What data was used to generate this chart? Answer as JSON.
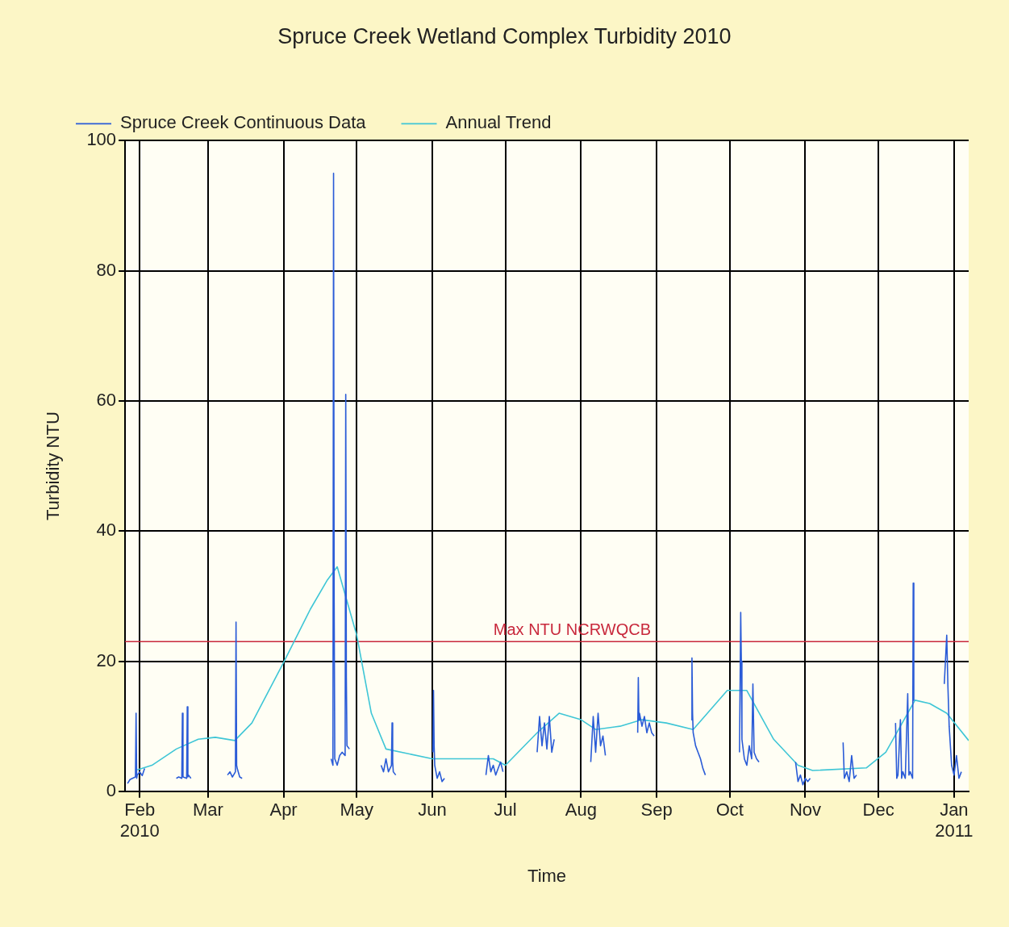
{
  "chart_data": {
    "type": "line",
    "title": "Spruce Creek Wetland Complex Turbidity 2010",
    "xlabel": "Time",
    "ylabel": "Turbidity NTU",
    "xlim": [
      "2010-01-26",
      "2011-01-07"
    ],
    "xticks": [
      {
        "value": "2010-02-01",
        "label": "Feb 2010"
      },
      {
        "value": "2010-03-01",
        "label": "Mar"
      },
      {
        "value": "2010-04-01",
        "label": "Apr"
      },
      {
        "value": "2010-05-01",
        "label": "May"
      },
      {
        "value": "2010-06-01",
        "label": "Jun"
      },
      {
        "value": "2010-07-01",
        "label": "Jul"
      },
      {
        "value": "2010-08-01",
        "label": "Aug"
      },
      {
        "value": "2010-09-01",
        "label": "Sep"
      },
      {
        "value": "2010-10-01",
        "label": "Oct"
      },
      {
        "value": "2010-11-01",
        "label": "Nov"
      },
      {
        "value": "2010-12-01",
        "label": "Dec"
      },
      {
        "value": "2011-01-01",
        "label": "Jan 2011"
      }
    ],
    "ylim": [
      0,
      100
    ],
    "yticks": [
      0,
      20,
      40,
      60,
      80,
      100
    ],
    "grid": true,
    "legend": "top left",
    "marker": "none",
    "line_style": "solid",
    "ref_lines": [
      {
        "axis": "y",
        "value": 23,
        "label": "Max NTU NCRWQCB",
        "color": "#c8283c"
      }
    ],
    "series": [
      {
        "name": "Spruce Creek Continuous Data",
        "color": "#2a5bd7",
        "x": [
          "2010-01-27",
          "2010-01-28",
          "2010-01-29",
          "2010-01-30T06:00",
          "2010-01-30T12:00",
          "2010-01-30T18:00",
          "2010-01-31",
          "2010-02-01",
          "2010-02-02",
          "2010-02-03",
          "2010-02-10",
          "2010-02-16",
          "2010-02-17",
          "2010-02-18T06:00",
          "2010-02-18T12:00",
          "2010-02-18T18:00",
          "2010-02-20T06:00",
          "2010-02-20T12:00",
          "2010-02-20T18:00",
          "2010-02-21",
          "2010-02-22",
          "2010-03-01",
          "2010-03-09",
          "2010-03-10",
          "2010-03-11",
          "2010-03-12T06:00",
          "2010-03-12T12:00",
          "2010-03-12T18:00",
          "2010-03-13",
          "2010-03-14",
          "2010-03-15",
          "2010-04-01",
          "2010-04-20T12:00",
          "2010-04-21T06:00",
          "2010-04-21T12:00",
          "2010-04-21T18:00",
          "2010-04-22",
          "2010-04-23",
          "2010-04-24",
          "2010-04-25",
          "2010-04-26T06:00",
          "2010-04-26T12:00",
          "2010-04-26T18:00",
          "2010-04-27",
          "2010-04-28",
          "2010-05-05",
          "2010-05-11",
          "2010-05-12",
          "2010-05-13",
          "2010-05-14",
          "2010-05-15T06:00",
          "2010-05-15T12:00",
          "2010-05-15T18:00",
          "2010-05-16",
          "2010-05-17",
          "2010-05-25",
          "2010-06-01T06:00",
          "2010-06-01T12:00",
          "2010-06-01T18:00",
          "2010-06-02",
          "2010-06-03",
          "2010-06-04",
          "2010-06-05",
          "2010-06-06",
          "2010-06-15",
          "2010-06-23",
          "2010-06-24",
          "2010-06-25",
          "2010-06-26",
          "2010-06-27",
          "2010-06-28",
          "2010-06-29",
          "2010-06-30",
          "2010-07-08",
          "2010-07-14",
          "2010-07-15",
          "2010-07-16",
          "2010-07-17",
          "2010-07-18",
          "2010-07-19",
          "2010-07-20",
          "2010-07-21",
          "2010-07-28",
          "2010-08-05",
          "2010-08-06",
          "2010-08-07",
          "2010-08-08",
          "2010-08-09",
          "2010-08-10",
          "2010-08-11",
          "2010-08-18",
          "2010-08-24T06:00",
          "2010-08-24T12:00",
          "2010-08-24T18:00",
          "2010-08-25",
          "2010-08-26",
          "2010-08-27",
          "2010-08-28",
          "2010-08-29",
          "2010-08-30",
          "2010-08-31",
          "2010-09-08",
          "2010-09-15T06:00",
          "2010-09-15T12:00",
          "2010-09-15T18:00",
          "2010-09-16",
          "2010-09-17",
          "2010-09-18",
          "2010-09-19",
          "2010-09-20",
          "2010-09-21",
          "2010-09-28",
          "2010-10-05",
          "2010-10-05T12:00",
          "2010-10-05T18:00",
          "2010-10-06",
          "2010-10-07",
          "2010-10-08",
          "2010-10-09",
          "2010-10-10",
          "2010-10-10T12:00",
          "2010-10-11",
          "2010-10-12",
          "2010-10-13",
          "2010-10-20",
          "2010-10-28",
          "2010-10-29",
          "2010-10-30",
          "2010-10-31",
          "2010-11-01",
          "2010-11-02",
          "2010-11-03",
          "2010-11-10",
          "2010-11-16T12:00",
          "2010-11-17",
          "2010-11-18",
          "2010-11-19",
          "2010-11-20",
          "2010-11-21",
          "2010-11-22",
          "2010-12-01",
          "2010-12-08",
          "2010-12-08T12:00",
          "2010-12-09",
          "2010-12-10",
          "2010-12-10T12:00",
          "2010-12-11",
          "2010-12-12",
          "2010-12-13",
          "2010-12-13T12:00",
          "2010-12-14",
          "2010-12-15",
          "2010-12-15T06:00",
          "2010-12-15T12:00",
          "2010-12-22",
          "2010-12-28",
          "2010-12-29",
          "2010-12-29T12:00",
          "2010-12-30",
          "2010-12-31",
          "2011-01-01",
          "2011-01-02",
          "2011-01-03",
          "2011-01-04"
        ],
        "values": [
          1.2,
          1.8,
          2.0,
          2.2,
          12,
          2.0,
          2.5,
          3.0,
          2.4,
          3.5,
          null,
          2.0,
          2.2,
          2.0,
          12,
          2.2,
          2.0,
          13,
          2.2,
          2.5,
          2.0,
          null,
          2.5,
          3.0,
          2.2,
          3.0,
          26,
          4.0,
          3.5,
          2.2,
          2.0,
          null,
          5.0,
          4.0,
          95,
          29,
          5.0,
          4.0,
          5.5,
          6.0,
          5.5,
          61,
          17.5,
          7.0,
          6.5,
          null,
          4.0,
          3.0,
          5.0,
          3.0,
          4.0,
          10.5,
          4.5,
          3.0,
          2.5,
          null,
          6.0,
          15.5,
          7.0,
          4.0,
          2.0,
          3.0,
          1.5,
          2.0,
          null,
          2.5,
          5.5,
          3.0,
          4.0,
          2.5,
          3.5,
          4.5,
          3.0,
          null,
          6.0,
          11.5,
          7.0,
          10.5,
          6.5,
          11.5,
          6.0,
          8.0,
          null,
          4.5,
          11.5,
          6.0,
          12.0,
          7.0,
          8.5,
          5.5,
          null,
          9.0,
          17.5,
          11.0,
          12.0,
          10.0,
          11.5,
          9.0,
          10.5,
          9.0,
          8.5,
          null,
          11.0,
          20.5,
          12.0,
          9.0,
          7.0,
          6.0,
          5.0,
          3.5,
          2.5,
          null,
          6.0,
          27.5,
          20.0,
          8.0,
          5.0,
          4.0,
          7.0,
          5.0,
          16.5,
          6.0,
          5.0,
          4.5,
          null,
          4.5,
          1.5,
          2.5,
          1.0,
          2.0,
          1.5,
          2.0,
          null,
          7.5,
          2.0,
          3.0,
          1.5,
          5.5,
          2.0,
          2.5,
          null,
          10.5,
          2.0,
          2.5,
          11.0,
          2.0,
          3.0,
          2.0,
          15.0,
          2.5,
          3.0,
          2.0,
          32.0,
          14.0,
          null,
          16.5,
          24.0,
          16.0,
          10.0,
          4.0,
          2.5,
          5.5,
          2.0,
          3.0
        ]
      },
      {
        "name": "Annual Trend",
        "color": "#3fc6d6",
        "x": [
          "2010-01-31",
          "2010-02-06",
          "2010-02-16",
          "2010-02-25",
          "2010-03-04",
          "2010-03-12",
          "2010-03-19",
          "2010-04-01",
          "2010-04-12",
          "2010-04-19",
          "2010-04-23",
          "2010-05-01",
          "2010-05-07",
          "2010-05-13",
          "2010-06-01",
          "2010-06-26",
          "2010-07-01",
          "2010-07-14",
          "2010-07-23",
          "2010-08-01",
          "2010-08-07",
          "2010-08-17",
          "2010-08-26",
          "2010-09-05",
          "2010-09-16",
          "2010-09-30",
          "2010-10-08",
          "2010-10-19",
          "2010-10-29",
          "2010-11-04",
          "2010-11-26",
          "2010-12-04",
          "2010-12-16",
          "2010-12-22",
          "2010-12-29",
          "2011-01-07"
        ],
        "values": [
          3.3,
          4.0,
          6.5,
          8.0,
          8.3,
          7.8,
          10.5,
          19.8,
          28,
          32.5,
          34.5,
          24,
          12,
          6.5,
          5.0,
          5.0,
          4.0,
          9.0,
          12,
          11,
          9.5,
          10,
          11,
          10.5,
          9.5,
          15.5,
          15.5,
          8.0,
          4.0,
          3.2,
          3.6,
          6.0,
          14,
          13.5,
          12,
          7.8
        ]
      }
    ]
  }
}
